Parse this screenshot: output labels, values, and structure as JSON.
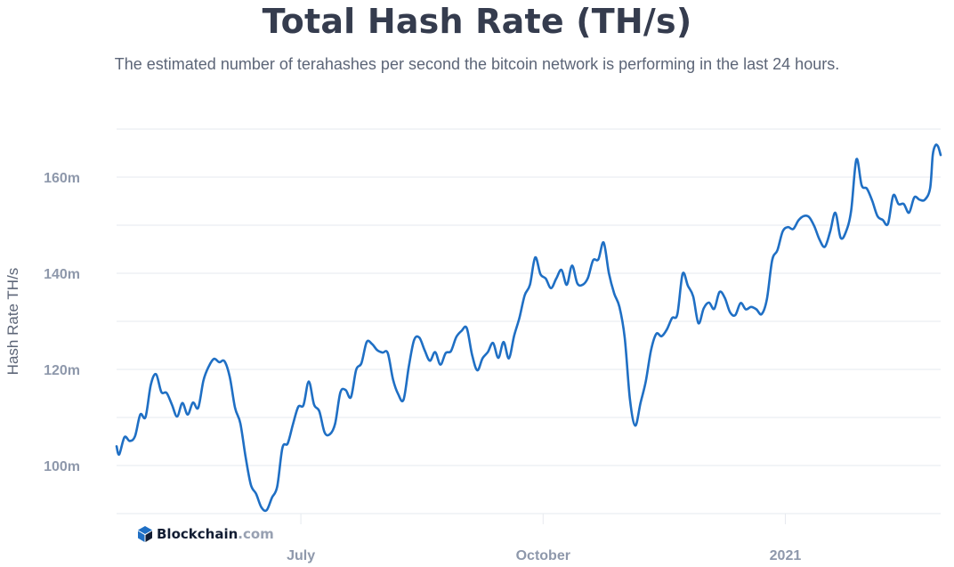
{
  "colors": {
    "line": "#1f6fc4",
    "grid": "#e6e9ef",
    "axis_text": "#8e98ab",
    "title": "#353c4e",
    "subtitle": "#5c6577",
    "brand_dark": "#121d33",
    "brand_light": "#98a1b2",
    "logo_blue": "#1f6fc4"
  },
  "brand": {
    "name": "Blockchain",
    "suffix": ".com",
    "icon": "blockchain-cube-icon"
  },
  "chart_data": {
    "type": "line",
    "title": "Total Hash Rate (TH/s)",
    "subtitle": "The estimated number of terahashes per second the bitcoin network is performing in the last 24 hours.",
    "ylabel": "Hash Rate TH/s",
    "xlabel": "",
    "ylim": [
      90,
      170
    ],
    "xlim": [
      "2020-04-22",
      "2021-03-01"
    ],
    "y_ticks": [
      {
        "value": 100,
        "label": "100m"
      },
      {
        "value": 120,
        "label": "120m"
      },
      {
        "value": 140,
        "label": "140m"
      },
      {
        "value": 160,
        "label": "160m"
      }
    ],
    "x_ticks": [
      {
        "value": "2020-07-01",
        "label": "July"
      },
      {
        "value": "2020-10-01",
        "label": "October"
      },
      {
        "value": "2021-01-01",
        "label": "2021"
      }
    ],
    "grid": "horizontal",
    "legend": "none",
    "series": [
      {
        "points": [
          [
            "2020-04-22",
            104.0
          ],
          [
            "2020-04-23",
            102.3
          ],
          [
            "2020-04-25",
            105.9
          ],
          [
            "2020-04-27",
            105.1
          ],
          [
            "2020-04-29",
            106.1
          ],
          [
            "2020-05-01",
            110.6
          ],
          [
            "2020-05-03",
            110.1
          ],
          [
            "2020-05-05",
            116.8
          ],
          [
            "2020-05-07",
            119.0
          ],
          [
            "2020-05-09",
            115.3
          ],
          [
            "2020-05-11",
            115.1
          ],
          [
            "2020-05-13",
            112.7
          ],
          [
            "2020-05-15",
            110.2
          ],
          [
            "2020-05-17",
            113.0
          ],
          [
            "2020-05-19",
            110.6
          ],
          [
            "2020-05-21",
            113.1
          ],
          [
            "2020-05-23",
            112.0
          ],
          [
            "2020-05-25",
            117.7
          ],
          [
            "2020-05-27",
            120.6
          ],
          [
            "2020-05-29",
            122.2
          ],
          [
            "2020-05-31",
            121.5
          ],
          [
            "2020-06-02",
            121.7
          ],
          [
            "2020-06-04",
            118.4
          ],
          [
            "2020-06-06",
            112.0
          ],
          [
            "2020-06-08",
            108.8
          ],
          [
            "2020-06-10",
            101.8
          ],
          [
            "2020-06-12",
            96.0
          ],
          [
            "2020-06-14",
            94.1
          ],
          [
            "2020-06-16",
            91.3
          ],
          [
            "2020-06-18",
            90.7
          ],
          [
            "2020-06-20",
            93.3
          ],
          [
            "2020-06-22",
            95.6
          ],
          [
            "2020-06-24",
            103.7
          ],
          [
            "2020-06-26",
            104.6
          ],
          [
            "2020-06-28",
            108.6
          ],
          [
            "2020-06-30",
            112.2
          ],
          [
            "2020-07-02",
            112.6
          ],
          [
            "2020-07-04",
            117.5
          ],
          [
            "2020-07-06",
            112.7
          ],
          [
            "2020-07-08",
            111.3
          ],
          [
            "2020-07-10",
            106.9
          ],
          [
            "2020-07-12",
            106.5
          ],
          [
            "2020-07-14",
            108.7
          ],
          [
            "2020-07-16",
            115.2
          ],
          [
            "2020-07-18",
            115.7
          ],
          [
            "2020-07-20",
            114.2
          ],
          [
            "2020-07-22",
            119.9
          ],
          [
            "2020-07-24",
            121.3
          ],
          [
            "2020-07-26",
            125.7
          ],
          [
            "2020-07-28",
            125.3
          ],
          [
            "2020-07-30",
            124.0
          ],
          [
            "2020-08-01",
            123.5
          ],
          [
            "2020-08-03",
            123.4
          ],
          [
            "2020-08-05",
            117.9
          ],
          [
            "2020-08-07",
            114.8
          ],
          [
            "2020-08-09",
            113.7
          ],
          [
            "2020-08-11",
            120.6
          ],
          [
            "2020-08-13",
            126.1
          ],
          [
            "2020-08-15",
            126.6
          ],
          [
            "2020-08-17",
            124.0
          ],
          [
            "2020-08-19",
            121.8
          ],
          [
            "2020-08-21",
            123.6
          ],
          [
            "2020-08-23",
            121.0
          ],
          [
            "2020-08-25",
            123.4
          ],
          [
            "2020-08-27",
            123.8
          ],
          [
            "2020-08-29",
            126.7
          ],
          [
            "2020-08-31",
            128.0
          ],
          [
            "2020-09-02",
            128.6
          ],
          [
            "2020-09-04",
            123.1
          ],
          [
            "2020-09-06",
            119.8
          ],
          [
            "2020-09-08",
            122.3
          ],
          [
            "2020-09-10",
            123.6
          ],
          [
            "2020-09-12",
            125.5
          ],
          [
            "2020-09-14",
            122.4
          ],
          [
            "2020-09-16",
            125.7
          ],
          [
            "2020-09-18",
            122.3
          ],
          [
            "2020-09-20",
            127.0
          ],
          [
            "2020-09-22",
            130.7
          ],
          [
            "2020-09-24",
            135.4
          ],
          [
            "2020-09-26",
            137.6
          ],
          [
            "2020-09-28",
            143.3
          ],
          [
            "2020-09-30",
            139.8
          ],
          [
            "2020-10-02",
            138.9
          ],
          [
            "2020-10-04",
            136.9
          ],
          [
            "2020-10-06",
            138.9
          ],
          [
            "2020-10-08",
            140.7
          ],
          [
            "2020-10-10",
            137.6
          ],
          [
            "2020-10-12",
            141.6
          ],
          [
            "2020-10-14",
            137.9
          ],
          [
            "2020-10-16",
            137.6
          ],
          [
            "2020-10-18",
            139.0
          ],
          [
            "2020-10-20",
            142.7
          ],
          [
            "2020-10-22",
            142.9
          ],
          [
            "2020-10-24",
            146.4
          ],
          [
            "2020-10-26",
            140.0
          ],
          [
            "2020-10-28",
            135.8
          ],
          [
            "2020-10-30",
            133.0
          ],
          [
            "2020-11-01",
            126.6
          ],
          [
            "2020-11-03",
            113.7
          ],
          [
            "2020-11-05",
            108.3
          ],
          [
            "2020-11-07",
            113.0
          ],
          [
            "2020-11-09",
            117.5
          ],
          [
            "2020-11-11",
            124.0
          ],
          [
            "2020-11-13",
            127.4
          ],
          [
            "2020-11-15",
            126.9
          ],
          [
            "2020-11-17",
            128.3
          ],
          [
            "2020-11-19",
            130.7
          ],
          [
            "2020-11-21",
            131.5
          ],
          [
            "2020-11-23",
            139.9
          ],
          [
            "2020-11-25",
            137.4
          ],
          [
            "2020-11-27",
            135.2
          ],
          [
            "2020-11-29",
            129.6
          ],
          [
            "2020-12-01",
            132.7
          ],
          [
            "2020-12-03",
            133.9
          ],
          [
            "2020-12-05",
            132.6
          ],
          [
            "2020-12-07",
            136.1
          ],
          [
            "2020-12-09",
            134.9
          ],
          [
            "2020-12-11",
            131.9
          ],
          [
            "2020-12-13",
            131.3
          ],
          [
            "2020-12-15",
            133.8
          ],
          [
            "2020-12-17",
            132.5
          ],
          [
            "2020-12-19",
            133.0
          ],
          [
            "2020-12-21",
            132.5
          ],
          [
            "2020-12-23",
            131.5
          ],
          [
            "2020-12-25",
            134.6
          ],
          [
            "2020-12-27",
            142.7
          ],
          [
            "2020-12-29",
            144.8
          ],
          [
            "2020-12-31",
            148.7
          ],
          [
            "2021-01-02",
            149.6
          ],
          [
            "2021-01-04",
            149.2
          ],
          [
            "2021-01-06",
            151.0
          ],
          [
            "2021-01-08",
            151.9
          ],
          [
            "2021-01-10",
            151.7
          ],
          [
            "2021-01-12",
            149.8
          ],
          [
            "2021-01-14",
            147.0
          ],
          [
            "2021-01-16",
            145.5
          ],
          [
            "2021-01-18",
            148.6
          ],
          [
            "2021-01-20",
            152.6
          ],
          [
            "2021-01-22",
            147.4
          ],
          [
            "2021-01-24",
            148.6
          ],
          [
            "2021-01-26",
            153.0
          ],
          [
            "2021-01-28",
            163.7
          ],
          [
            "2021-01-30",
            158.3
          ],
          [
            "2021-02-01",
            157.6
          ],
          [
            "2021-02-03",
            155.1
          ],
          [
            "2021-02-05",
            151.9
          ],
          [
            "2021-02-07",
            151.1
          ],
          [
            "2021-02-09",
            150.3
          ],
          [
            "2021-02-11",
            156.2
          ],
          [
            "2021-02-13",
            154.4
          ],
          [
            "2021-02-15",
            154.4
          ],
          [
            "2021-02-17",
            152.6
          ],
          [
            "2021-02-19",
            155.8
          ],
          [
            "2021-02-21",
            155.3
          ],
          [
            "2021-02-23",
            155.3
          ],
          [
            "2021-02-25",
            157.7
          ],
          [
            "2021-02-26",
            164.6
          ],
          [
            "2021-02-27",
            166.6
          ],
          [
            "2021-02-28",
            166.4
          ],
          [
            "2021-03-01",
            164.6
          ]
        ]
      }
    ]
  }
}
